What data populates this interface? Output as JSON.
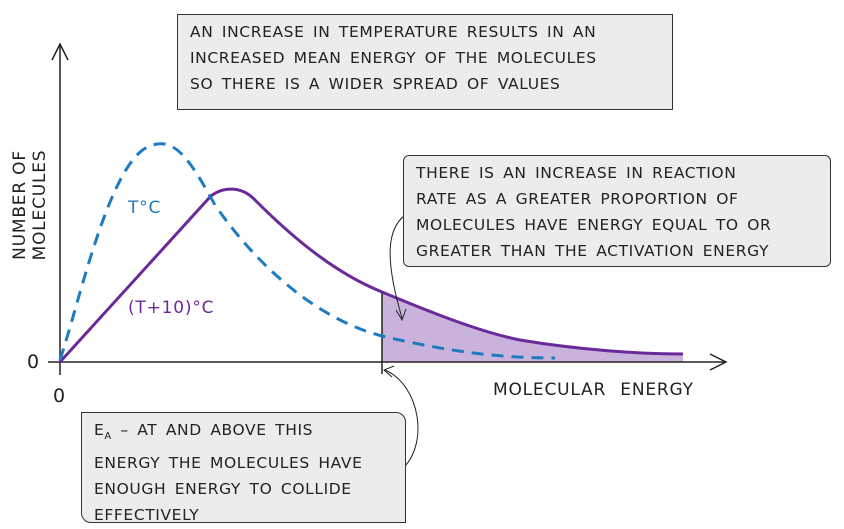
{
  "diagram": {
    "y_axis_label": "NUMBER OF MOLECULES",
    "x_axis_label": "MOLECULAR ENERGY",
    "origin_x": "0",
    "origin_y": "0",
    "curves": [
      {
        "label": "T°C",
        "color": "#1f7bc0",
        "style": "dashed"
      },
      {
        "label": "(T+10)°C",
        "color": "#6a2a9a",
        "style": "solid"
      }
    ],
    "shaded_color": "#c9b3dc",
    "annotations": {
      "top": [
        "AN INCREASE IN TEMPERATURE RESULTS IN AN",
        "INCREASED MEAN ENERGY OF THE MOLECULES",
        "SO THERE IS A WIDER SPREAD OF VALUES"
      ],
      "right": [
        "THERE IS AN INCREASE IN REACTION",
        "RATE AS A GREATER PROPORTION OF",
        "MOLECULES HAVE ENERGY EQUAL TO OR",
        "GREATER THAN THE ACTIVATION ENERGY"
      ],
      "bottom_symbol": "E",
      "bottom_subscript": "A",
      "bottom": [
        " – AT AND ABOVE THIS",
        "ENERGY THE MOLECULES HAVE",
        "ENOUGH ENERGY TO COLLIDE",
        "EFFECTIVELY"
      ]
    }
  }
}
